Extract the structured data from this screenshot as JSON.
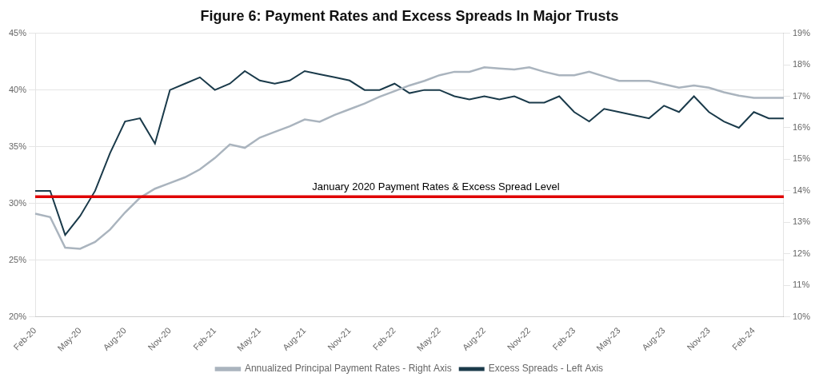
{
  "chart_data": {
    "type": "line",
    "title": "Figure 6: Payment Rates and Excess Spreads In Major Trusts",
    "categories": [
      "Feb-20",
      null,
      null,
      "May-20",
      null,
      null,
      "Aug-20",
      null,
      null,
      "Nov-20",
      null,
      null,
      "Feb-21",
      null,
      null,
      "May-21",
      null,
      null,
      "Aug-21",
      null,
      null,
      "Nov-21",
      null,
      null,
      "Feb-22",
      null,
      null,
      "May-22",
      null,
      null,
      "Aug-22",
      null,
      null,
      "Nov-22",
      null,
      null,
      "Feb-23",
      null,
      null,
      "May-23",
      null,
      null,
      "Aug-23",
      null,
      null,
      "Nov-23",
      null,
      null,
      "Feb-24",
      null,
      null
    ],
    "series": [
      {
        "name": "Annualized Principal Payment Rates - Right Axis",
        "color": "#aab4be",
        "axis": "y",
        "values": [
          29.1,
          28.8,
          26.1,
          26.0,
          26.6,
          27.7,
          29.2,
          30.5,
          31.3,
          31.8,
          32.3,
          33.0,
          34.0,
          35.2,
          34.9,
          35.8,
          36.3,
          36.8,
          37.4,
          37.2,
          37.8,
          38.3,
          38.8,
          39.4,
          39.9,
          40.4,
          40.8,
          41.3,
          41.6,
          41.6,
          42.0,
          41.9,
          41.8,
          42.0,
          41.6,
          41.3,
          41.3,
          41.6,
          41.2,
          40.8,
          40.8,
          40.8,
          40.5,
          40.2,
          40.4,
          40.2,
          39.8,
          39.5,
          39.3,
          39.3,
          39.3
        ]
      },
      {
        "name": "Excess Spreads - Left Axis",
        "color": "#1a3a4a",
        "axis": "y2",
        "values": [
          14.0,
          14.0,
          12.6,
          13.2,
          14.0,
          15.2,
          16.2,
          16.3,
          15.5,
          17.2,
          17.4,
          17.6,
          17.2,
          17.4,
          17.8,
          17.5,
          17.4,
          17.5,
          17.8,
          17.7,
          17.6,
          17.5,
          17.2,
          17.2,
          17.4,
          17.1,
          17.2,
          17.2,
          17.0,
          16.9,
          17.0,
          16.9,
          17.0,
          16.8,
          16.8,
          17.0,
          16.5,
          16.2,
          16.6,
          16.5,
          16.4,
          16.3,
          16.7,
          16.5,
          17.0,
          16.5,
          16.2,
          16.0,
          16.5,
          16.3,
          16.3
        ]
      }
    ],
    "ylim": [
      20,
      45
    ],
    "yticks": [
      {
        "value": 20,
        "label": "20%"
      },
      {
        "value": 25,
        "label": "25%"
      },
      {
        "value": 30,
        "label": "30%"
      },
      {
        "value": 35,
        "label": "35%"
      },
      {
        "value": 40,
        "label": "40%"
      },
      {
        "value": 45,
        "label": "45%"
      }
    ],
    "y2lim": [
      10,
      19
    ],
    "y2ticks": [
      {
        "value": 10,
        "label": "10%"
      },
      {
        "value": 11,
        "label": "11%"
      },
      {
        "value": 12,
        "label": "12%"
      },
      {
        "value": 13,
        "label": "13%"
      },
      {
        "value": 14,
        "label": "14%"
      },
      {
        "value": 15,
        "label": "15%"
      },
      {
        "value": 16,
        "label": "16%"
      },
      {
        "value": 17,
        "label": "17%"
      },
      {
        "value": 18,
        "label": "18%"
      },
      {
        "value": 19,
        "label": "19%"
      }
    ],
    "hline": {
      "value": 30.6,
      "color": "#e00000",
      "label": "January 2020 Payment Rates & Excess Spread Level"
    },
    "grid": true,
    "legend": "bottom"
  }
}
